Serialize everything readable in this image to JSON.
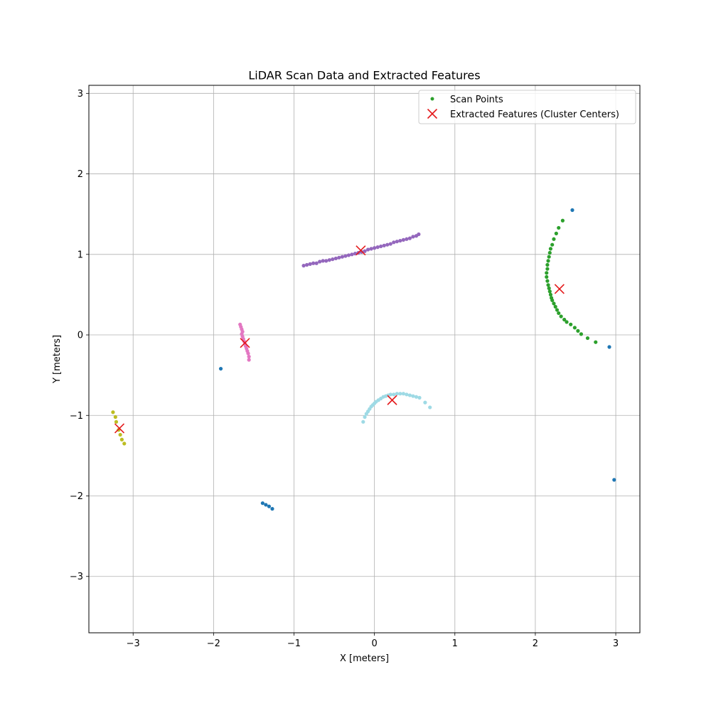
{
  "chart_data": {
    "type": "scatter",
    "title": "LiDAR Scan Data and Extracted Features",
    "xlabel": "X [meters]",
    "ylabel": "Y [meters]",
    "xlim": [
      -3.55,
      3.3
    ],
    "ylim": [
      -3.7,
      3.1
    ],
    "grid": true,
    "legend_position": "top-right",
    "xticks": [
      -3,
      -2,
      -1,
      0,
      1,
      2,
      3
    ],
    "xtick_labels": [
      "−3",
      "−2",
      "−1",
      "0",
      "1",
      "2",
      "3"
    ],
    "yticks": [
      -3,
      -2,
      -1,
      0,
      1,
      2,
      3
    ],
    "ytick_labels": [
      "−3",
      "−2",
      "−1",
      "0",
      "1",
      "2",
      "3"
    ],
    "series": [
      {
        "name": "Scan Points",
        "marker": "dot",
        "legend_color": "#2ca02c",
        "clusters": [
          {
            "color": "#1f77b4",
            "points": [
              [
                -1.91,
                -0.42
              ],
              [
                -1.39,
                -2.09
              ],
              [
                -1.35,
                -2.11
              ],
              [
                -1.31,
                -2.13
              ],
              [
                -1.27,
                -2.16
              ],
              [
                2.46,
                1.55
              ],
              [
                2.92,
                -0.15
              ],
              [
                2.98,
                -1.8
              ]
            ]
          },
          {
            "color": "#bcbd22",
            "points": [
              [
                -3.25,
                -0.96
              ],
              [
                -3.22,
                -1.02
              ],
              [
                -3.21,
                -1.08
              ],
              [
                -3.18,
                -1.18
              ],
              [
                -3.16,
                -1.24
              ],
              [
                -3.14,
                -1.3
              ],
              [
                -3.11,
                -1.35
              ]
            ]
          },
          {
            "color": "#e377c2",
            "points": [
              [
                -1.67,
                0.13
              ],
              [
                -1.66,
                0.1
              ],
              [
                -1.65,
                0.07
              ],
              [
                -1.64,
                0.04
              ],
              [
                -1.65,
                0.01
              ],
              [
                -1.64,
                -0.02
              ],
              [
                -1.63,
                -0.05
              ],
              [
                -1.62,
                -0.08
              ],
              [
                -1.61,
                -0.11
              ],
              [
                -1.6,
                -0.14
              ],
              [
                -1.59,
                -0.17
              ],
              [
                -1.58,
                -0.2
              ],
              [
                -1.57,
                -0.23
              ],
              [
                -1.56,
                -0.27
              ],
              [
                -1.56,
                -0.31
              ]
            ]
          },
          {
            "color": "#9467bd",
            "points": [
              [
                -0.88,
                0.86
              ],
              [
                -0.84,
                0.87
              ],
              [
                -0.8,
                0.88
              ],
              [
                -0.76,
                0.89
              ],
              [
                -0.72,
                0.89
              ],
              [
                -0.68,
                0.91
              ],
              [
                -0.64,
                0.92
              ],
              [
                -0.6,
                0.92
              ],
              [
                -0.56,
                0.93
              ],
              [
                -0.52,
                0.94
              ],
              [
                -0.48,
                0.95
              ],
              [
                -0.44,
                0.96
              ],
              [
                -0.4,
                0.97
              ],
              [
                -0.36,
                0.98
              ],
              [
                -0.32,
                0.99
              ],
              [
                -0.28,
                1.0
              ],
              [
                -0.24,
                1.01
              ],
              [
                -0.2,
                1.02
              ],
              [
                -0.16,
                1.03
              ],
              [
                -0.12,
                1.04
              ],
              [
                -0.08,
                1.06
              ],
              [
                -0.04,
                1.07
              ],
              [
                0.0,
                1.08
              ],
              [
                0.04,
                1.09
              ],
              [
                0.08,
                1.1
              ],
              [
                0.12,
                1.11
              ],
              [
                0.16,
                1.12
              ],
              [
                0.2,
                1.13
              ],
              [
                0.24,
                1.15
              ],
              [
                0.28,
                1.16
              ],
              [
                0.32,
                1.17
              ],
              [
                0.36,
                1.18
              ],
              [
                0.4,
                1.19
              ],
              [
                0.44,
                1.2
              ],
              [
                0.48,
                1.22
              ],
              [
                0.52,
                1.23
              ],
              [
                0.55,
                1.25
              ]
            ]
          },
          {
            "color": "#2ca02c",
            "points": [
              [
                2.34,
                1.42
              ],
              [
                2.29,
                1.33
              ],
              [
                2.26,
                1.26
              ],
              [
                2.23,
                1.19
              ],
              [
                2.21,
                1.12
              ],
              [
                2.19,
                1.07
              ],
              [
                2.18,
                1.02
              ],
              [
                2.17,
                0.97
              ],
              [
                2.16,
                0.92
              ],
              [
                2.15,
                0.87
              ],
              [
                2.15,
                0.82
              ],
              [
                2.14,
                0.77
              ],
              [
                2.14,
                0.72
              ],
              [
                2.15,
                0.67
              ],
              [
                2.16,
                0.62
              ],
              [
                2.17,
                0.58
              ],
              [
                2.18,
                0.54
              ],
              [
                2.19,
                0.5
              ],
              [
                2.2,
                0.46
              ],
              [
                2.21,
                0.43
              ],
              [
                2.23,
                0.39
              ],
              [
                2.25,
                0.35
              ],
              [
                2.27,
                0.31
              ],
              [
                2.29,
                0.27
              ],
              [
                2.32,
                0.23
              ],
              [
                2.36,
                0.19
              ],
              [
                2.39,
                0.16
              ],
              [
                2.44,
                0.13
              ],
              [
                2.49,
                0.09
              ],
              [
                2.53,
                0.05
              ],
              [
                2.57,
                0.01
              ],
              [
                2.65,
                -0.04
              ],
              [
                2.75,
                -0.09
              ]
            ]
          },
          {
            "color": "#9edae5",
            "points": [
              [
                -0.14,
                -1.08
              ],
              [
                -0.12,
                -1.02
              ],
              [
                -0.1,
                -0.98
              ],
              [
                -0.08,
                -0.95
              ],
              [
                -0.06,
                -0.92
              ],
              [
                -0.04,
                -0.89
              ],
              [
                -0.02,
                -0.87
              ],
              [
                0.0,
                -0.85
              ],
              [
                0.02,
                -0.83
              ],
              [
                0.05,
                -0.81
              ],
              [
                0.08,
                -0.79
              ],
              [
                0.11,
                -0.77
              ],
              [
                0.14,
                -0.76
              ],
              [
                0.17,
                -0.75
              ],
              [
                0.2,
                -0.74
              ],
              [
                0.24,
                -0.74
              ],
              [
                0.28,
                -0.73
              ],
              [
                0.32,
                -0.73
              ],
              [
                0.36,
                -0.73
              ],
              [
                0.4,
                -0.74
              ],
              [
                0.44,
                -0.75
              ],
              [
                0.48,
                -0.76
              ],
              [
                0.52,
                -0.77
              ],
              [
                0.56,
                -0.78
              ],
              [
                0.63,
                -0.84
              ],
              [
                0.69,
                -0.9
              ]
            ]
          }
        ]
      },
      {
        "name": "Extracted Features (Cluster Centers)",
        "marker": "x",
        "color": "#e41a1c",
        "points": [
          [
            -3.17,
            -1.16
          ],
          [
            -1.61,
            -0.1
          ],
          [
            -0.17,
            1.05
          ],
          [
            2.3,
            0.57
          ],
          [
            0.22,
            -0.81
          ]
        ]
      }
    ]
  }
}
